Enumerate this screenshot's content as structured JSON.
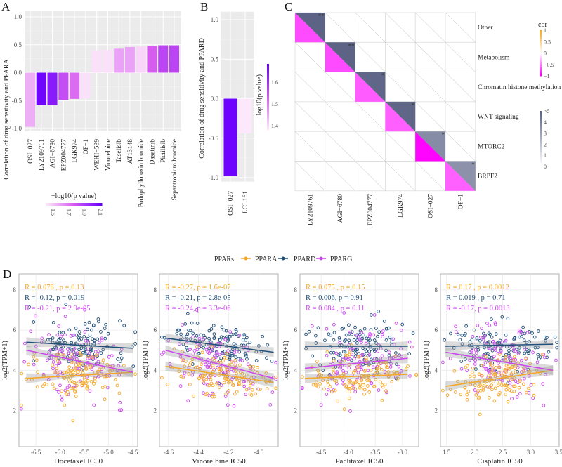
{
  "panel_labels": {
    "a": "A",
    "b": "B",
    "c": "C",
    "d": "D"
  },
  "chart_data": [
    {
      "id": "A",
      "type": "bar",
      "ylabel": "Correlation of drug sensitivity and PPARA",
      "ylim": [
        -1.05,
        1.1
      ],
      "yticks": [
        "1.0",
        "0.5",
        "0.0",
        "-0.5",
        "-1.0"
      ],
      "ytick_values": [
        1.0,
        0.5,
        0.0,
        -0.5,
        -1.0
      ],
      "grid": true,
      "categories": [
        "OSI−027",
        "LY2109761",
        "AGI−6780",
        "EPZ004777",
        "LGK974",
        "OF−1",
        "WEHI−539",
        "Vinorelbine",
        "Taselisib",
        "AT13148",
        "Podophyllotoxin bromide",
        "Dasatinib",
        "Pictilisib",
        "Sepantronium bromide"
      ],
      "values": [
        -0.97,
        -0.58,
        -0.58,
        -0.49,
        -0.47,
        -0.46,
        0.4,
        0.41,
        0.43,
        0.46,
        0.47,
        0.48,
        0.49,
        0.49
      ],
      "neg_log10_p": [
        1.55,
        2.1,
        2.02,
        1.82,
        1.72,
        1.42,
        1.42,
        1.42,
        1.58,
        1.58,
        1.45,
        1.76,
        1.85,
        1.85
      ],
      "legend": {
        "title": "−log10(p value)",
        "ticks": [
          "1.5",
          "1.7",
          "1.9",
          "2.1"
        ],
        "tick_values": [
          1.5,
          1.7,
          1.9,
          2.1
        ],
        "range": [
          1.4,
          2.12
        ],
        "placement": "bottom"
      },
      "colors": {
        "low": "#fde8fb",
        "mid": "#d65cf0",
        "high": "#6a00ff"
      }
    },
    {
      "id": "B",
      "type": "bar",
      "ylabel": "Correlation of drug sensitivity and PPARD",
      "ylim": [
        -1.05,
        1.1
      ],
      "yticks": [
        "1.0",
        "0.5",
        "0.0",
        "-0.5",
        "-1.0"
      ],
      "ytick_values": [
        1.0,
        0.5,
        0.0,
        -0.5,
        -1.0
      ],
      "grid": true,
      "categories": [
        "OSI−027",
        "LCL161"
      ],
      "values": [
        -0.98,
        -0.44
      ],
      "neg_log10_p": [
        1.68,
        1.38
      ],
      "legend": {
        "title": "−log10(p value)",
        "ticks": [
          "1.6",
          "1.5",
          "1.4"
        ],
        "tick_values": [
          1.6,
          1.5,
          1.4
        ],
        "range": [
          1.38,
          1.685
        ],
        "placement": "right"
      },
      "colors": {
        "low": "#fde8fb",
        "mid": "#d65cf0",
        "high": "#6a00ff"
      }
    },
    {
      "id": "C",
      "type": "heatmap",
      "columns": [
        "LY2109761",
        "AGI−6780",
        "EPZ004777",
        "LGK974",
        "OSI−027",
        "OF−1"
      ],
      "rows": [
        "Other",
        "Metabolism",
        "Chromatin histone methylation",
        "WNT signaling",
        "MTORC2",
        "BRPF2"
      ],
      "cells": [
        {
          "row": 0,
          "col": 0,
          "cor": -0.58,
          "neg_log10_p": 4.6,
          "stars": "**"
        },
        {
          "row": 1,
          "col": 1,
          "cor": -0.58,
          "neg_log10_p": 4.5,
          "stars": "**"
        },
        {
          "row": 2,
          "col": 2,
          "cor": -0.49,
          "neg_log10_p": 4.4,
          "stars": "*"
        },
        {
          "row": 3,
          "col": 3,
          "cor": -0.47,
          "neg_log10_p": 4.4,
          "stars": "*"
        },
        {
          "row": 4,
          "col": 4,
          "cor": -0.97,
          "neg_log10_p": 3.2,
          "stars": "*"
        },
        {
          "row": 5,
          "col": 5,
          "cor": -0.46,
          "neg_log10_p": 3.0,
          "stars": "*"
        }
      ],
      "legend_cor": {
        "title": "cor",
        "ticks": [
          "1",
          "0.5",
          "0",
          "−0.5",
          "−1"
        ],
        "tick_values": [
          1,
          0.5,
          0,
          -0.5,
          -1
        ]
      },
      "legend_p": {
        "ticks": [
          ">5",
          "4",
          "3",
          "2",
          "1",
          "0"
        ],
        "tick_values": [
          5,
          4,
          3,
          2,
          1,
          0
        ]
      },
      "colors": {
        "neg": "#ff00ff",
        "zero": "#ffffff",
        "pos": "#f5a623",
        "p_high": "#5c6385"
      }
    },
    {
      "id": "D",
      "type": "scatter",
      "legend": {
        "title": "PPARs",
        "placement": "top",
        "items": [
          {
            "name": "PPARA",
            "color": "#f5a623"
          },
          {
            "name": "PPARD",
            "color": "#1f4e79"
          },
          {
            "name": "PPARG",
            "color": "#cc44ee"
          }
        ]
      },
      "ylabel": "log2(TPM+1)",
      "ylim": [
        0.2,
        8.8
      ],
      "yticks": [
        "2",
        "4",
        "6",
        "8"
      ],
      "ytick_values": [
        2,
        4,
        6,
        8
      ],
      "grid": true,
      "panels": [
        {
          "xlabel": "Docetaxel IC50",
          "xlim": [
            -6.85,
            -4.4
          ],
          "xticks": [
            "-6.5",
            "-6.0",
            "-5.5",
            "-5.0",
            "-4.5"
          ],
          "xtick_values": [
            -6.5,
            -6.0,
            -5.5,
            -5.0,
            -4.5
          ],
          "stats": [
            "R = 0.078 , p = 0.13",
            "R = -0.12, p = 0.019",
            "R = -0.21, p = 2.9e-05"
          ],
          "fits": [
            {
              "series": "PPARA",
              "x": [
                -6.7,
                -4.5
              ],
              "y": [
                3.6,
                3.9
              ]
            },
            {
              "series": "PPARD",
              "x": [
                -6.7,
                -4.5
              ],
              "y": [
                5.4,
                5.1
              ]
            },
            {
              "series": "PPARG",
              "x": [
                -6.7,
                -4.5
              ],
              "y": [
                5.0,
                3.9
              ]
            }
          ]
        },
        {
          "xlabel": "Vinorelbine IC50",
          "xlim": [
            -4.66,
            -3.87
          ],
          "xticks": [
            "-4.6",
            "-4.4",
            "-4.2",
            "-4.0"
          ],
          "xtick_values": [
            -4.6,
            -4.4,
            -4.2,
            -4.0
          ],
          "stats": [
            "R = -0.27, p = 1.6e-07",
            "R = -0.21, p = 2.8e-05",
            "R = -0.24, p = 3.3e-06"
          ],
          "fits": [
            {
              "series": "PPARA",
              "x": [
                -4.62,
                -3.9
              ],
              "y": [
                4.2,
                3.4
              ]
            },
            {
              "series": "PPARD",
              "x": [
                -4.62,
                -3.9
              ],
              "y": [
                5.6,
                4.9
              ]
            },
            {
              "series": "PPARG",
              "x": [
                -4.62,
                -3.9
              ],
              "y": [
                5.0,
                3.6
              ]
            }
          ]
        },
        {
          "xlabel": "Paclitaxel IC50",
          "xlim": [
            -4.89,
            -2.7
          ],
          "xticks": [
            "-4.5",
            "-4.0",
            "-3.5",
            "-3.0"
          ],
          "xtick_values": [
            -4.5,
            -4.0,
            -3.5,
            -3.0
          ],
          "stats": [
            "R = 0.075 , p = 0.15",
            "R = 0.006, p = 0.91",
            "R = 0.084 , p = 0.11"
          ],
          "fits": [
            {
              "series": "PPARA",
              "x": [
                -4.8,
                -2.9
              ],
              "y": [
                3.6,
                3.8
              ]
            },
            {
              "series": "PPARD",
              "x": [
                -4.8,
                -2.9
              ],
              "y": [
                5.2,
                5.2
              ]
            },
            {
              "series": "PPARG",
              "x": [
                -4.8,
                -2.9
              ],
              "y": [
                4.1,
                4.6
              ]
            }
          ]
        },
        {
          "xlabel": "Cisplatin IC50",
          "xlim": [
            1.39,
            3.51
          ],
          "xticks": [
            "1.5",
            "2.0",
            "2.5",
            "3.0",
            "3.5"
          ],
          "xtick_values": [
            1.5,
            2.0,
            2.5,
            3.0,
            3.5
          ],
          "stats": [
            "R = 0.17 , p = 0.0012",
            "R = 0.019 , p = 0.71",
            "R = -0.17, p = 0.0013"
          ],
          "fits": [
            {
              "series": "PPARA",
              "x": [
                1.48,
                3.4
              ],
              "y": [
                3.2,
                4.0
              ]
            },
            {
              "series": "PPARD",
              "x": [
                1.48,
                3.4
              ],
              "y": [
                5.2,
                5.3
              ]
            },
            {
              "series": "PPARG",
              "x": [
                1.48,
                3.4
              ],
              "y": [
                4.9,
                4.0
              ]
            }
          ]
        }
      ]
    }
  ]
}
